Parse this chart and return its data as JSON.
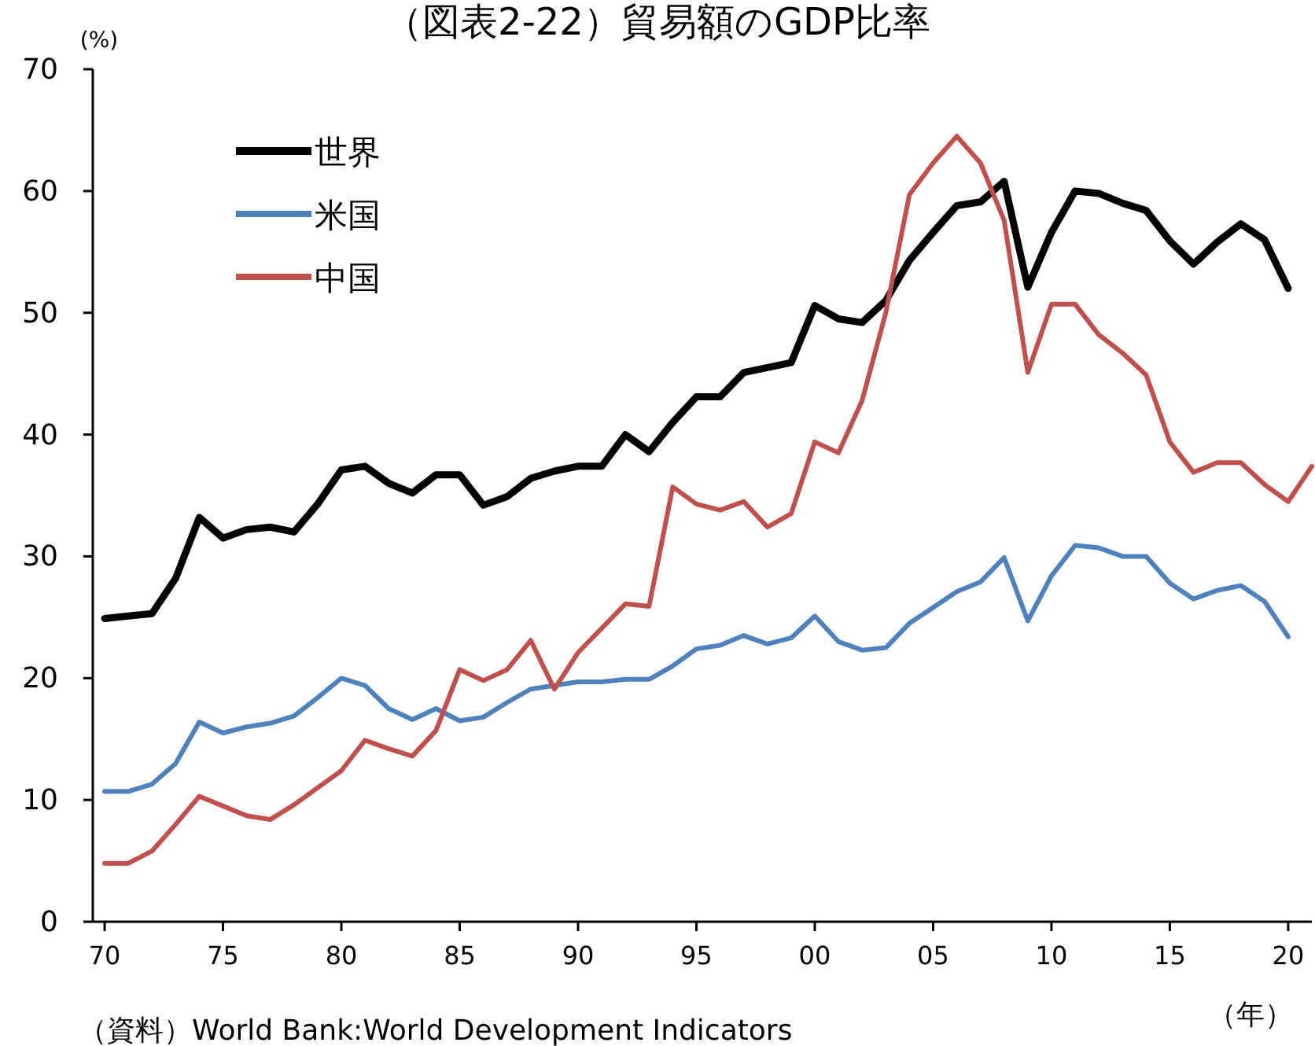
{
  "chart_data": {
    "type": "line",
    "title": "（図表2-22）貿易額のGDP比率",
    "ylabel": "(%)",
    "xlabel": "（年）",
    "annotations": [
      "（資料）World Bank:World Development Indicators"
    ],
    "x": [
      1970,
      1971,
      1972,
      1973,
      1974,
      1975,
      1976,
      1977,
      1978,
      1979,
      1980,
      1981,
      1982,
      1983,
      1984,
      1985,
      1986,
      1987,
      1988,
      1989,
      1990,
      1991,
      1992,
      1993,
      1994,
      1995,
      1996,
      1997,
      1998,
      1999,
      2000,
      2001,
      2002,
      2003,
      2004,
      2005,
      2006,
      2007,
      2008,
      2009,
      2010,
      2011,
      2012,
      2013,
      2014,
      2015,
      2016,
      2017,
      2018,
      2019,
      2020,
      2021
    ],
    "xlim": [
      1969.5,
      2021
    ],
    "xticks": [
      {
        "value": 1970,
        "label": "70"
      },
      {
        "value": 1975,
        "label": "75"
      },
      {
        "value": 1980,
        "label": "80"
      },
      {
        "value": 1985,
        "label": "85"
      },
      {
        "value": 1990,
        "label": "90"
      },
      {
        "value": 1995,
        "label": "95"
      },
      {
        "value": 2000,
        "label": "00"
      },
      {
        "value": 2005,
        "label": "05"
      },
      {
        "value": 2010,
        "label": "10"
      },
      {
        "value": 2015,
        "label": "15"
      },
      {
        "value": 2020,
        "label": "20"
      }
    ],
    "ylim": [
      0,
      70
    ],
    "yticks": [
      0,
      10,
      20,
      30,
      40,
      50,
      60,
      70
    ],
    "grid": false,
    "legend": "top left",
    "marker": "none",
    "line_style": "solid",
    "series": [
      {
        "name": "世界",
        "color": "#000000",
        "values": [
          24.9,
          25.1,
          25.3,
          28.2,
          33.2,
          31.5,
          32.2,
          32.4,
          32.0,
          34.3,
          37.1,
          37.4,
          36.0,
          35.2,
          36.7,
          36.7,
          34.2,
          34.9,
          36.4,
          37.0,
          37.4,
          37.4,
          40.0,
          38.6,
          41.0,
          43.1,
          43.1,
          45.1,
          45.5,
          45.9,
          50.6,
          49.5,
          49.2,
          51.0,
          54.3,
          56.6,
          58.8,
          59.1,
          60.8,
          52.1,
          56.6,
          60.0,
          59.8,
          59.0,
          58.4,
          55.9,
          54.0,
          55.8,
          57.3,
          56.0,
          52.0,
          null
        ]
      },
      {
        "name": "米国",
        "color": "#4f81bd",
        "values": [
          10.7,
          10.7,
          11.3,
          13.0,
          16.4,
          15.5,
          16.0,
          16.3,
          16.9,
          18.4,
          20.0,
          19.4,
          17.5,
          16.6,
          17.5,
          16.5,
          16.8,
          18.0,
          19.1,
          19.4,
          19.7,
          19.7,
          19.9,
          19.9,
          21.0,
          22.4,
          22.7,
          23.5,
          22.8,
          23.3,
          25.1,
          23.0,
          22.3,
          22.5,
          24.5,
          25.8,
          27.1,
          27.9,
          29.9,
          24.7,
          28.4,
          30.9,
          30.7,
          30.0,
          30.0,
          27.8,
          26.5,
          27.2,
          27.6,
          26.3,
          23.4,
          null
        ]
      },
      {
        "name": "中国",
        "color": "#c0504d",
        "values": [
          4.8,
          4.8,
          5.8,
          8.0,
          10.3,
          9.5,
          8.7,
          8.4,
          9.6,
          11.0,
          12.4,
          14.9,
          14.2,
          13.6,
          15.7,
          20.7,
          19.8,
          20.7,
          23.1,
          19.1,
          22.1,
          24.1,
          26.1,
          25.9,
          35.7,
          34.3,
          33.8,
          34.5,
          32.4,
          33.5,
          39.4,
          38.5,
          42.8,
          50.0,
          59.7,
          62.3,
          64.5,
          62.3,
          57.6,
          45.1,
          50.7,
          50.7,
          48.2,
          46.7,
          44.9,
          39.4,
          36.9,
          37.7,
          37.7,
          35.9,
          34.5,
          37.4
        ]
      }
    ]
  }
}
